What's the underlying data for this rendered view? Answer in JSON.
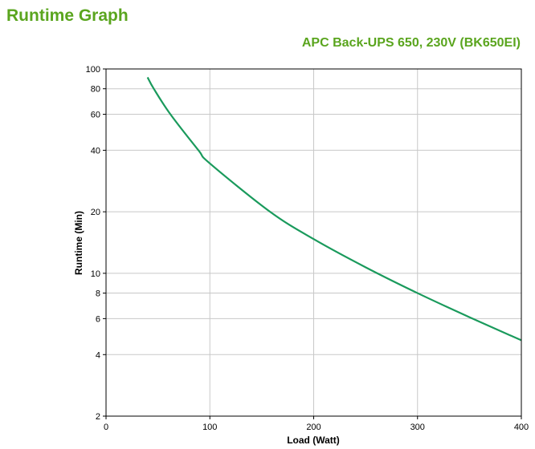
{
  "page": {
    "title": "Runtime Graph"
  },
  "chart_data": {
    "type": "line",
    "title": "APC Back-UPS 650, 230V (BK650EI)",
    "xlabel": "Load (Watt)",
    "ylabel": "Runtime (Min)",
    "xlim": [
      0,
      400
    ],
    "ylim": [
      2,
      100
    ],
    "yscale": "log",
    "grid": true,
    "xticks": [
      0,
      100,
      200,
      300,
      400
    ],
    "yticks": [
      2,
      4,
      6,
      8,
      10,
      20,
      40,
      60,
      80,
      100
    ],
    "line_color": "#1a9a5c",
    "title_color": "#5aa51e",
    "series": [
      {
        "x": [
          40,
          46,
          62,
          89,
          100,
          158,
          200,
          250,
          300,
          350,
          400
        ],
        "y": [
          91,
          80,
          60,
          40,
          34.5,
          20,
          14.7,
          10.7,
          8.0,
          6.1,
          4.7
        ]
      }
    ]
  }
}
